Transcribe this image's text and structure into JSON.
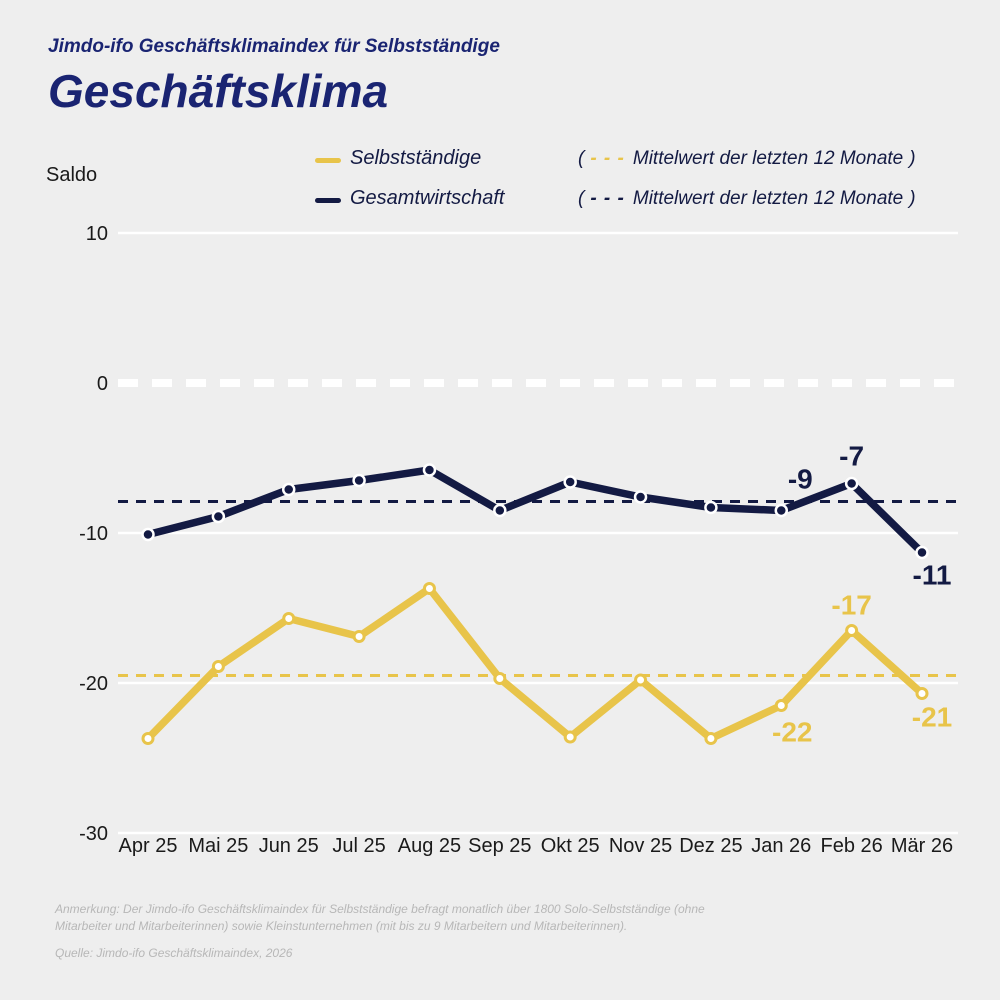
{
  "header": {
    "kicker": "Jimdo-ifo Geschäftsklimaindex für Selbstständige",
    "title": "Geschäftsklima"
  },
  "y_axis_title": "Saldo",
  "legend": {
    "paren_open": "(",
    "dash": "- - -",
    "paren_close": ")",
    "items": [
      {
        "label": "Selbstständige",
        "mean_note": "Mittelwert der letzten 12 Monate"
      },
      {
        "label": "Gesamtwirtschaft",
        "mean_note": "Mittelwert der letzten 12 Monate"
      }
    ]
  },
  "footnotes": {
    "note": "Anmerkung: Der Jimdo-ifo Geschäftsklimaindex für Selbstständige befragt monatlich über 1800 Solo-Selbstständige (ohne Mitarbeiter und Mitarbeiterinnen) sowie Kleinstunternehmen (mit bis zu 9 Mitarbeitern und Mitarbeiterinnen).",
    "source": "Quelle: Jimdo-ifo Geschäftsklimaindex, 2026"
  },
  "colors": {
    "background": "#EEEEEE",
    "title": "#1A2472",
    "selbststaendige": "#E8C44A",
    "gesamtwirtschaft": "#131A43",
    "grid": "#FFFFFF",
    "axis_text": "#1A1A1A",
    "footnote": "#B7B7B7"
  },
  "chart_data": {
    "type": "line",
    "title": "Geschäftsklima",
    "ylabel": "Saldo",
    "ylim": [
      -32,
      12
    ],
    "yticks": [
      10,
      0,
      -10,
      -20,
      -30
    ],
    "grid": true,
    "legend_position": "top",
    "categories": [
      "Apr 25",
      "Mai 25",
      "Jun 25",
      "Jul 25",
      "Aug 25",
      "Sep 25",
      "Okt 25",
      "Nov 25",
      "Dez 25",
      "Jan 26",
      "Feb 26",
      "Mär 26"
    ],
    "series": [
      {
        "name": "Selbstständige",
        "color": "#E8C44A",
        "marker": "ring",
        "values": [
          -23.7,
          -18.9,
          -15.7,
          -16.9,
          -13.7,
          -19.7,
          -23.6,
          -19.8,
          -23.7,
          -21.5,
          -16.5,
          -20.7
        ],
        "mean_last_12": -19.5,
        "point_labels": [
          {
            "index": 9,
            "text": "-22",
            "dx": 11,
            "dy": 27
          },
          {
            "index": 10,
            "text": "-17",
            "dx": 0,
            "dy": -25
          },
          {
            "index": 11,
            "text": "-21",
            "dx": 10,
            "dy": 24
          }
        ]
      },
      {
        "name": "Gesamtwirtschaft",
        "color": "#131A43",
        "marker": "dot",
        "values": [
          -10.1,
          -8.9,
          -7.1,
          -6.5,
          -5.8,
          -8.5,
          -6.6,
          -7.6,
          -8.3,
          -8.5,
          -6.7,
          -11.3
        ],
        "mean_last_12": -7.9,
        "point_labels": [
          {
            "index": 9,
            "text": "-9",
            "dx": 19,
            "dy": -31
          },
          {
            "index": 10,
            "text": "-7",
            "dx": 0,
            "dy": -27
          },
          {
            "index": 11,
            "text": "-11",
            "dx": 10,
            "dy": 23
          }
        ]
      }
    ]
  }
}
